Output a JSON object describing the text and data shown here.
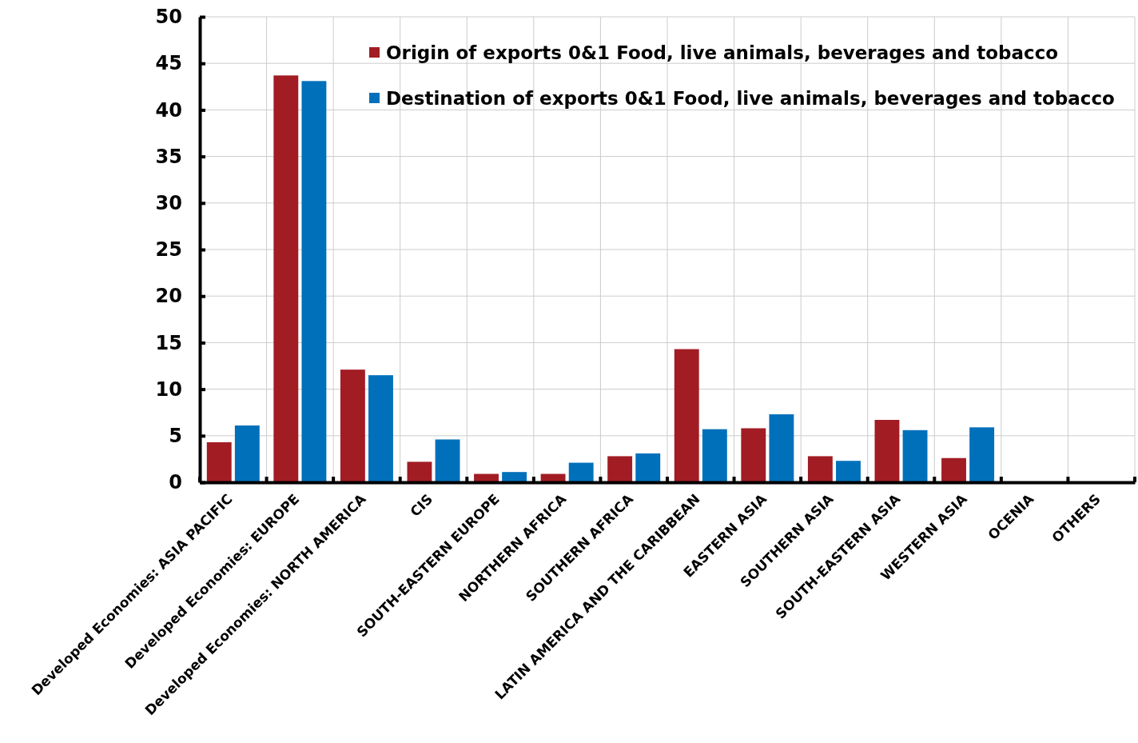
{
  "chart_data": {
    "type": "bar",
    "categories": [
      "Developed Economies: ASIA PACIFIC",
      "Developed Economies: EUROPE",
      "Developed Economies: NORTH AMERICA",
      "CIS",
      "SOUTH-EASTERN EUROPE",
      "NORTHERN AFRICA",
      "SOUTHERN AFRICA",
      "LATIN AMERICA AND THE CARIBBEAN",
      "EASTERN ASIA",
      "SOUTHERN ASIA",
      "SOUTH-EASTERN ASIA",
      "WESTERN ASIA",
      "OCENIA",
      "OTHERS"
    ],
    "series": [
      {
        "name": "Origin of exports 0&1 Food, live animals, beverages and tobacco",
        "color": "#a21c24",
        "values": [
          4.3,
          43.7,
          12.1,
          2.2,
          0.9,
          0.9,
          2.8,
          14.3,
          5.8,
          2.8,
          6.7,
          2.6,
          0,
          0
        ]
      },
      {
        "name": "Destination of exports 0&1 Food, live animals, beverages and tobacco",
        "color": "#0070bb",
        "values": [
          6.1,
          43.1,
          11.5,
          4.6,
          1.1,
          2.1,
          3.1,
          5.7,
          7.3,
          2.3,
          5.6,
          5.9,
          0,
          0
        ]
      }
    ],
    "ylim": [
      0,
      50
    ],
    "yticks": [
      0,
      5,
      10,
      15,
      20,
      25,
      30,
      35,
      40,
      45,
      50
    ],
    "grid": true,
    "legend": "top right"
  }
}
